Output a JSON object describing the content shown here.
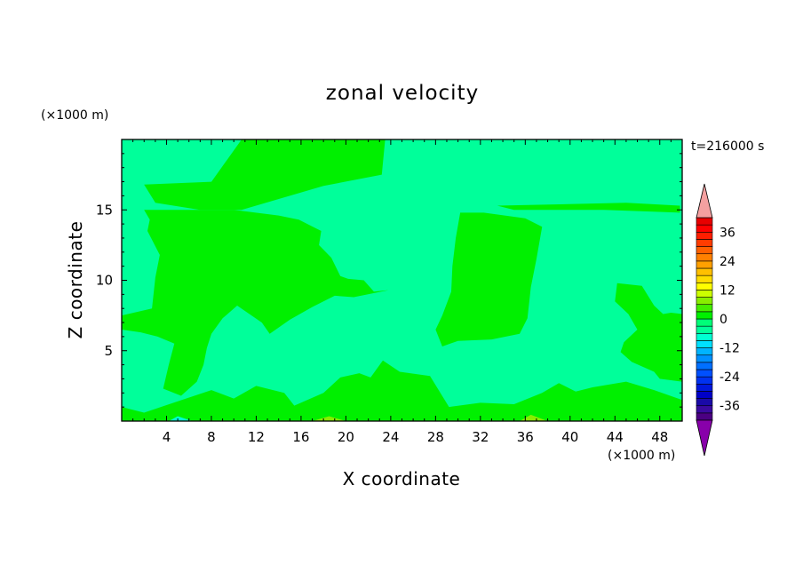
{
  "chart_data": {
    "type": "heatmap",
    "title": "zonal velocity",
    "time_label": "t=216000 s",
    "xlabel": "X coordinate",
    "ylabel": "Z coordinate",
    "x_unit": "(×1000 m)",
    "y_unit": "(×1000 m)",
    "xlim": [
      0,
      50
    ],
    "ylim": [
      0,
      20
    ],
    "x_ticks": [
      4,
      8,
      12,
      16,
      20,
      24,
      28,
      32,
      36,
      40,
      44,
      48
    ],
    "y_ticks": [
      5,
      10,
      15
    ],
    "colorbar": {
      "levels": [
        -42,
        -39,
        -36,
        -33,
        -30,
        -27,
        -24,
        -21,
        -18,
        -15,
        -12,
        -9,
        -6,
        -3,
        0,
        3,
        6,
        9,
        12,
        15,
        18,
        21,
        24,
        27,
        30,
        33,
        36,
        39,
        42
      ],
      "colors": [
        "#4b0082",
        "#3a0aa0",
        "#1a0aa8",
        "#0000c8",
        "#0018dc",
        "#0032f0",
        "#0050ff",
        "#0070ff",
        "#0090ff",
        "#00b4ff",
        "#00e0ff",
        "#00ffd2",
        "#00ff9a",
        "#00ff78",
        "#00f000",
        "#44ee00",
        "#88ee00",
        "#ccff00",
        "#ffff00",
        "#ffdc00",
        "#ffc000",
        "#ffa000",
        "#ff8000",
        "#ff6000",
        "#ff3c00",
        "#ff1e00",
        "#ff0000",
        "#e80000"
      ],
      "under_color": "#8800aa",
      "over_color": "#f4a0a0",
      "labels": [
        "-36",
        "-24",
        "-12",
        "0",
        "12",
        "24",
        "36"
      ],
      "label_values": [
        -36,
        -24,
        -12,
        0,
        12,
        24,
        36
      ]
    },
    "background_level": "#00ff9a",
    "regions": [
      {
        "color": "#00f000",
        "points": [
          [
            10.7,
            20
          ],
          [
            23.5,
            20
          ],
          [
            23.2,
            17.5
          ],
          [
            18,
            16.7
          ],
          [
            10.7,
            15
          ],
          [
            7,
            15
          ],
          [
            3,
            15.5
          ],
          [
            2,
            16.8
          ],
          [
            8,
            17
          ]
        ]
      },
      {
        "color": "#00f000",
        "points": [
          [
            2,
            15
          ],
          [
            10,
            15
          ],
          [
            14,
            14.6
          ],
          [
            15.8,
            14.3
          ],
          [
            17.8,
            13.5
          ],
          [
            17.6,
            12.5
          ],
          [
            18.7,
            11.6
          ],
          [
            19.5,
            10.3
          ],
          [
            20.2,
            10.1
          ],
          [
            21.6,
            10
          ],
          [
            22.5,
            9.2
          ],
          [
            23.8,
            9.3
          ],
          [
            20.7,
            8.8
          ],
          [
            19,
            8.9
          ],
          [
            17,
            8.1
          ],
          [
            15,
            7.2
          ],
          [
            13.2,
            6.2
          ],
          [
            12.5,
            7
          ],
          [
            10.3,
            8.2
          ],
          [
            9,
            7.3
          ],
          [
            8,
            6.2
          ],
          [
            7.6,
            5.2
          ],
          [
            7.3,
            4
          ],
          [
            6.7,
            2.8
          ],
          [
            5.3,
            1.8
          ],
          [
            3.7,
            2.3
          ],
          [
            4.2,
            4
          ],
          [
            4.7,
            5.5
          ],
          [
            3.2,
            6
          ],
          [
            1.7,
            6.3
          ],
          [
            0,
            6.5
          ],
          [
            0,
            7.5
          ],
          [
            2.7,
            8
          ],
          [
            3,
            10.2
          ],
          [
            3.4,
            11.8
          ],
          [
            2.3,
            13.5
          ],
          [
            2.5,
            14.3
          ]
        ]
      },
      {
        "color": "#00f000",
        "points": [
          [
            30.2,
            14.8
          ],
          [
            32.3,
            14.8
          ],
          [
            36,
            14.4
          ],
          [
            37.5,
            13.8
          ],
          [
            37,
            11.5
          ],
          [
            36.5,
            9.5
          ],
          [
            36.2,
            7.3
          ],
          [
            35.5,
            6.2
          ],
          [
            33,
            5.8
          ],
          [
            30,
            5.7
          ],
          [
            28.6,
            5.3
          ],
          [
            28,
            6.5
          ],
          [
            28.6,
            7.5
          ],
          [
            29.4,
            9.2
          ],
          [
            29.5,
            11
          ],
          [
            29.8,
            13
          ]
        ]
      },
      {
        "color": "#00f000",
        "points": [
          [
            33.5,
            15.3
          ],
          [
            45,
            15.5
          ],
          [
            49.8,
            15.3
          ],
          [
            49.8,
            14.8
          ],
          [
            43,
            15
          ],
          [
            35,
            15
          ]
        ]
      },
      {
        "color": "#00f000",
        "points": [
          [
            44.2,
            9.8
          ],
          [
            46.4,
            9.6
          ],
          [
            47.5,
            8.2
          ],
          [
            48.3,
            7.6
          ],
          [
            49,
            7.7
          ],
          [
            50,
            7.6
          ],
          [
            50,
            2.8
          ],
          [
            48,
            3
          ],
          [
            47.5,
            3.5
          ],
          [
            45.5,
            4.2
          ],
          [
            44.5,
            4.9
          ],
          [
            44.8,
            5.6
          ],
          [
            46,
            6.5
          ],
          [
            45.2,
            7.6
          ],
          [
            44,
            8.5
          ]
        ]
      },
      {
        "color": "#00f000",
        "points": [
          [
            0,
            1
          ],
          [
            2,
            0.6
          ],
          [
            5,
            1.4
          ],
          [
            8,
            2.2
          ],
          [
            10,
            1.6
          ],
          [
            12,
            2.5
          ],
          [
            14.5,
            2
          ],
          [
            15.4,
            1.1
          ],
          [
            18,
            2
          ],
          [
            19.5,
            3.1
          ],
          [
            21.2,
            3.4
          ],
          [
            22.2,
            3.1
          ],
          [
            23.3,
            4.3
          ],
          [
            24.8,
            3.5
          ],
          [
            27.5,
            3.2
          ],
          [
            29.2,
            1
          ],
          [
            32,
            1.3
          ],
          [
            35,
            1.2
          ],
          [
            37.5,
            2
          ],
          [
            39,
            2.7
          ],
          [
            40.5,
            2.1
          ],
          [
            42,
            2.4
          ],
          [
            45,
            2.8
          ],
          [
            47.5,
            2.2
          ],
          [
            50,
            1.5
          ],
          [
            50,
            0
          ],
          [
            0,
            0
          ]
        ]
      },
      {
        "color": "#88ee00",
        "points": [
          [
            17,
            0
          ],
          [
            18.5,
            0.35
          ],
          [
            20,
            0
          ]
        ]
      },
      {
        "color": "#88ee00",
        "points": [
          [
            35.5,
            0
          ],
          [
            36.5,
            0.45
          ],
          [
            38,
            0
          ]
        ]
      },
      {
        "color": "#00ffd2",
        "points": [
          [
            4.2,
            0
          ],
          [
            5,
            0.35
          ],
          [
            6.3,
            0
          ]
        ]
      }
    ]
  }
}
